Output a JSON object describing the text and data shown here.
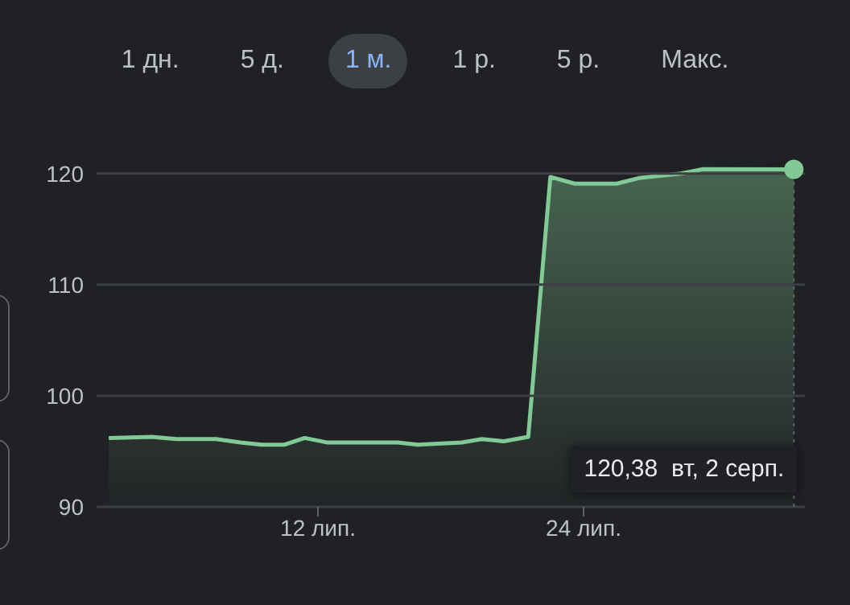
{
  "chart_data": {
    "type": "area",
    "x": [
      2.55,
      4.5,
      5.6,
      7.4,
      8.5,
      9.45,
      10.5,
      11.4,
      12.4,
      15.6,
      16.5,
      18.5,
      19.4,
      20.4,
      21.5,
      22.5,
      23.6,
      25.5,
      26.5,
      28.4,
      29.4,
      33.5
    ],
    "series": [
      {
        "color": "#81c995",
        "values": [
          96.2,
          96.3,
          96.1,
          96.1,
          95.8,
          95.6,
          95.6,
          96.2,
          95.8,
          95.8,
          95.6,
          95.8,
          96.1,
          95.9,
          96.3,
          119.7,
          119.1,
          119.1,
          119.6,
          120.0,
          120.4,
          120.38
        ]
      }
    ],
    "xlim": [
      2,
      34
    ],
    "xticks": [
      {
        "value": 12,
        "label": "12 лип."
      },
      {
        "value": 24,
        "label": "24 лип."
      }
    ],
    "ylim": [
      90,
      121
    ],
    "yticks": [
      90,
      100,
      110,
      120
    ],
    "grid": "y",
    "marker": "none",
    "ref_lines": [
      {
        "axis": "x",
        "value": 33.5,
        "line_style": "dotted",
        "color": "#5f6368"
      }
    ],
    "annotations": [
      "1 дн.",
      "5 д.",
      "1 м.",
      "1 р.",
      "5 р.",
      "Макс.",
      "120,38  вт, 2 серп."
    ]
  }
}
